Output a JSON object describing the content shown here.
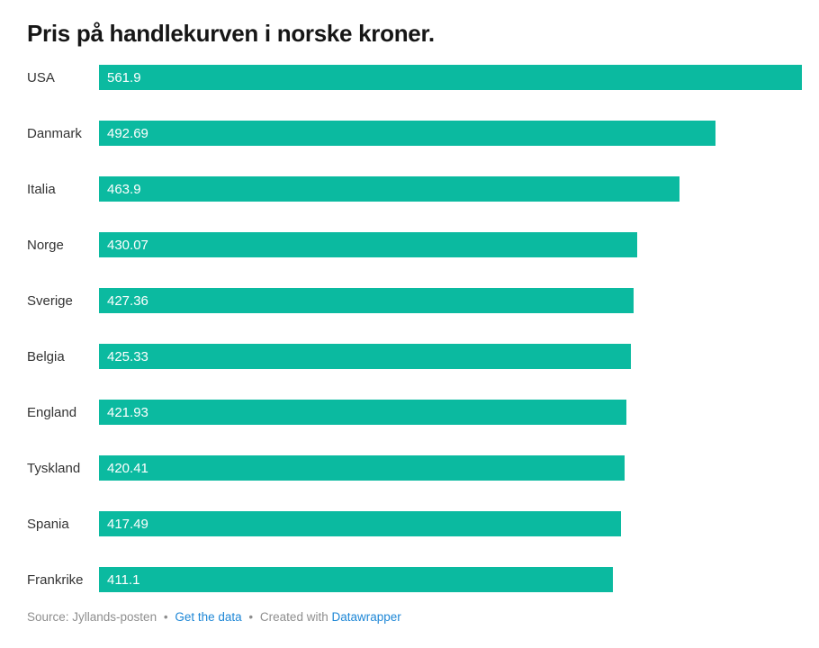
{
  "title": "Pris på handlekurven i norske kroner.",
  "chart_data": {
    "type": "bar",
    "orientation": "horizontal",
    "title": "Pris på handlekurven i norske kroner.",
    "categories": [
      "USA",
      "Danmark",
      "Italia",
      "Norge",
      "Sverige",
      "Belgia",
      "England",
      "Tyskland",
      "Spania",
      "Frankrike"
    ],
    "values": [
      561.9,
      492.69,
      463.9,
      430.07,
      427.36,
      425.33,
      421.93,
      420.41,
      417.49,
      411.1
    ],
    "value_labels": [
      "561.9",
      "492.69",
      "463.9",
      "430.07",
      "427.36",
      "425.33",
      "421.93",
      "420.41",
      "417.49",
      "411.1"
    ],
    "xlabel": "",
    "ylabel": "",
    "xlim": [
      0,
      561.9
    ],
    "grid": false,
    "legend": false,
    "bar_color": "#0bbaa0",
    "value_label_position": "inside-start"
  },
  "footer": {
    "source_text": "Source: Jyllands-posten",
    "separator": "•",
    "get_data_label": "Get the data",
    "created_with_text": "Created with",
    "datawrapper_label": "Datawrapper"
  },
  "colors": {
    "bar": "#0bbaa0",
    "title": "#161616",
    "category_label": "#333333",
    "value_label": "#ffffff",
    "footer_text": "#8e8e8e",
    "link": "#1e87d6",
    "background": "#ffffff"
  }
}
